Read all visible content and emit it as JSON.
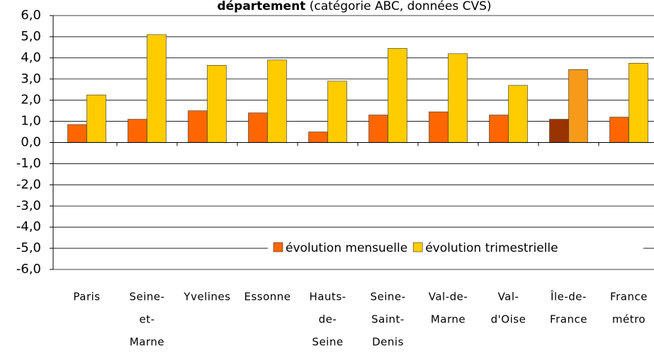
{
  "chart_data": {
    "type": "bar",
    "title_bold": "département",
    "title_rest": "(catégorie ABC, données CVS)",
    "categories": [
      [
        "Paris"
      ],
      [
        "Seine-",
        "et-",
        "Marne"
      ],
      [
        "Yvelines"
      ],
      [
        "Essonne"
      ],
      [
        "Hauts-",
        "de-",
        "Seine"
      ],
      [
        "Seine-",
        "Saint-",
        "Denis"
      ],
      [
        "Val-de-",
        "Marne"
      ],
      [
        "Val-",
        "d'Oise"
      ],
      [
        "Île-de-",
        "France"
      ],
      [
        "France",
        "métro"
      ]
    ],
    "series": [
      {
        "name": "évolution mensuelle",
        "color": "#ff6600",
        "colors": [
          "#ff6600",
          "#ff6600",
          "#ff6600",
          "#ff6600",
          "#ff6600",
          "#ff6600",
          "#ff6600",
          "#ff6600",
          "#993300",
          "#ff6600"
        ],
        "values": [
          0.85,
          1.1,
          1.5,
          1.4,
          0.5,
          1.3,
          1.45,
          1.3,
          1.1,
          1.2
        ]
      },
      {
        "name": "évolution trimestrielle",
        "color": "#ffcc00",
        "colors": [
          "#ffcc00",
          "#ffcc00",
          "#ffcc00",
          "#ffcc00",
          "#ffcc00",
          "#ffcc00",
          "#ffcc00",
          "#ffcc00",
          "#f79a1a",
          "#ffcc00"
        ],
        "values": [
          2.25,
          5.1,
          3.65,
          3.9,
          2.9,
          4.45,
          4.2,
          2.7,
          3.45,
          3.75
        ]
      }
    ],
    "ylim": [
      -6,
      6
    ],
    "yticks": [
      {
        "value": 6,
        "label": "6,0"
      },
      {
        "value": 5,
        "label": "5,0"
      },
      {
        "value": 4,
        "label": "4,0"
      },
      {
        "value": 3,
        "label": "3,0"
      },
      {
        "value": 2,
        "label": "2,0"
      },
      {
        "value": 1,
        "label": "1,0"
      },
      {
        "value": 0,
        "label": "0,0"
      },
      {
        "value": -1,
        "label": "-1,0"
      },
      {
        "value": -2,
        "label": "-2,0"
      },
      {
        "value": -3,
        "label": "-3,0"
      },
      {
        "value": -4,
        "label": "-4,0"
      },
      {
        "value": -5,
        "label": "-5,0"
      },
      {
        "value": -6,
        "label": "-6,0"
      }
    ],
    "grid": true
  }
}
